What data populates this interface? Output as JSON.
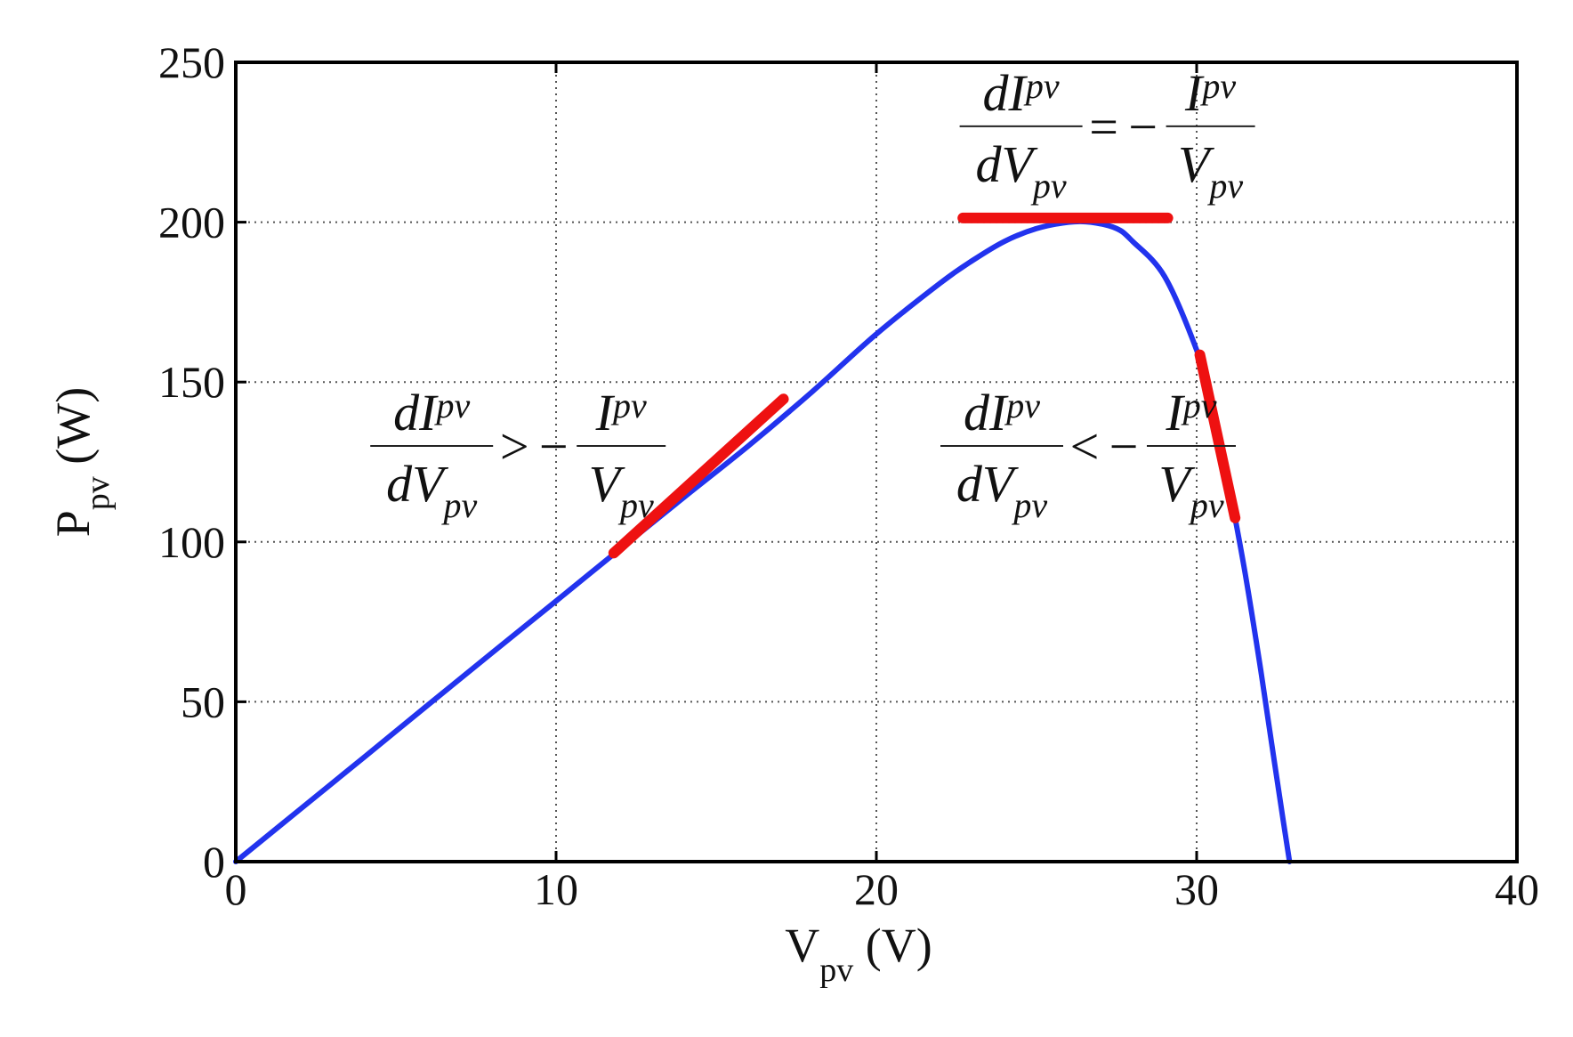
{
  "chart_data": {
    "type": "line",
    "xlabel": {
      "main": "V",
      "sub": "pv",
      "unit": "(V)"
    },
    "ylabel": {
      "main": "P",
      "sub": "pv",
      "unit": "(W)"
    },
    "xlim": [
      0,
      40
    ],
    "ylim": [
      0,
      250
    ],
    "xticks": [
      "0",
      "10",
      "20",
      "30",
      "40"
    ],
    "yticks": [
      "0",
      "50",
      "100",
      "150",
      "200",
      "250"
    ],
    "grid": true,
    "series": [
      {
        "color": "#2233ee",
        "x": [
          0,
          2,
          4,
          6,
          8,
          10,
          12,
          14,
          16,
          18,
          20,
          22,
          23,
          24,
          25,
          26,
          26.7,
          27.5,
          28,
          29,
          30,
          30.5,
          31,
          31.5,
          32,
          32.4,
          32.7,
          32.9
        ],
        "y": [
          0,
          16.3,
          32.6,
          49,
          65.3,
          81.5,
          97.8,
          114,
          130,
          147,
          165,
          181,
          188,
          194,
          198,
          200,
          200,
          198,
          194,
          183,
          160,
          143,
          118,
          91,
          60,
          33,
          13,
          0
        ]
      }
    ],
    "tangents": [
      {
        "color": "#ee1111",
        "x": [
          11.8,
          17.1
        ],
        "y": [
          96.5,
          144.7
        ]
      },
      {
        "color": "#ee1111",
        "x": [
          22.7,
          29.1
        ],
        "y": [
          201.3,
          201.3
        ]
      },
      {
        "color": "#ee1111",
        "x": [
          30.1,
          31.2
        ],
        "y": [
          158.5,
          107.5
        ]
      }
    ],
    "annotations": [
      {
        "lhs_num": "dI",
        "lhs_den": "dV",
        "sub": "pv",
        "op": ">",
        "rhs_num": "I",
        "rhs_den": "V",
        "x": 4.2,
        "y": 130
      },
      {
        "lhs_num": "dI",
        "lhs_den": "dV",
        "sub": "pv",
        "op": "<",
        "rhs_num": "I",
        "rhs_den": "V",
        "x": 22,
        "y": 130
      },
      {
        "lhs_num": "dI",
        "lhs_den": "dV",
        "sub": "pv",
        "op": "=",
        "rhs_num": "I",
        "rhs_den": "V",
        "x": 22.6,
        "y": 230
      }
    ]
  }
}
